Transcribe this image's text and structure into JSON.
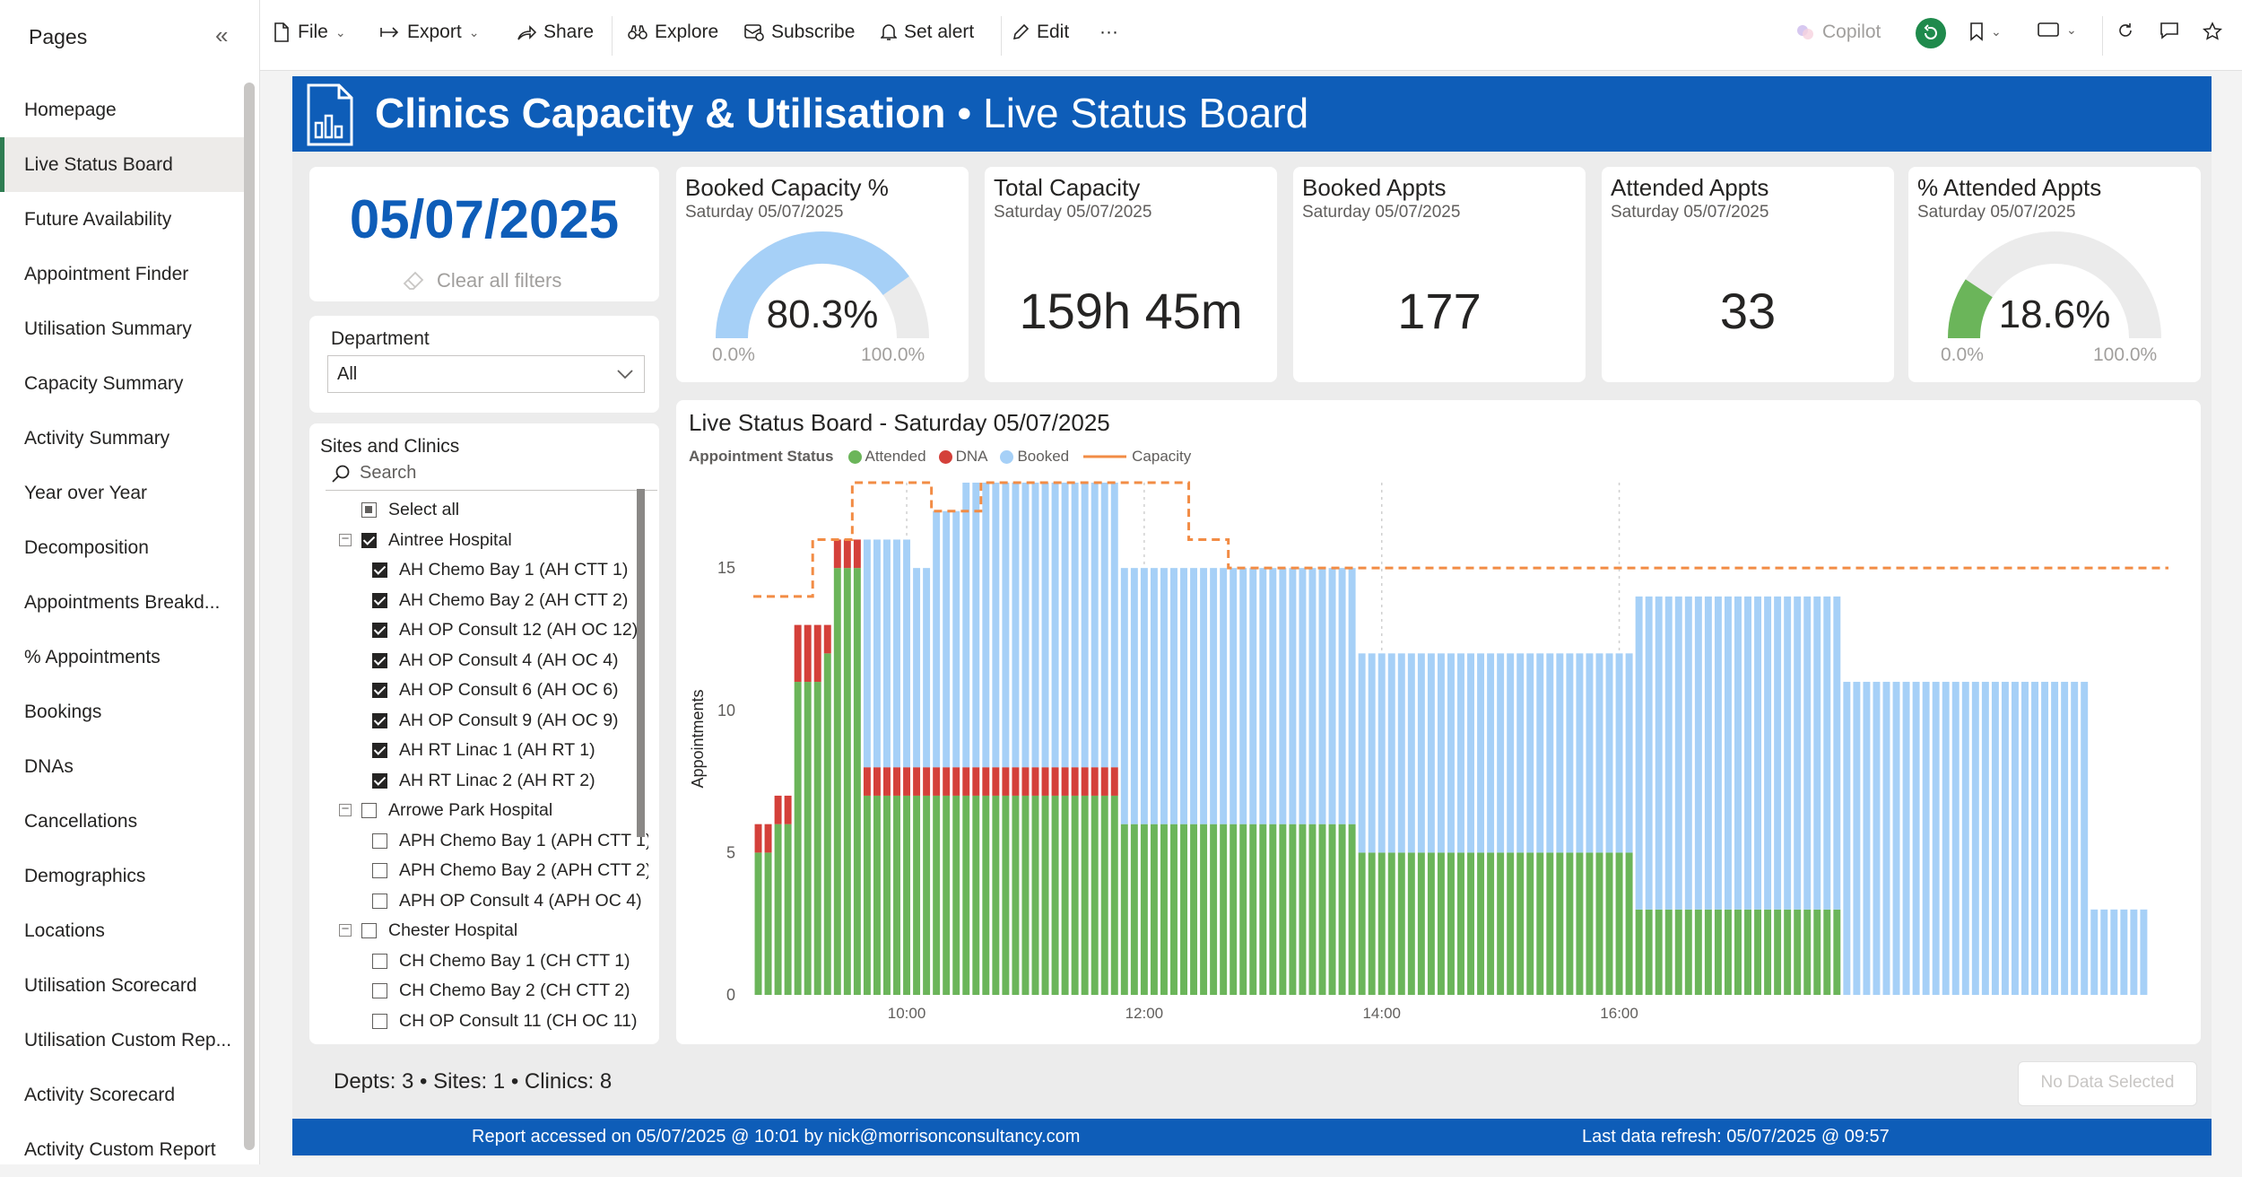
{
  "pages_pane": {
    "title": "Pages",
    "items": [
      {
        "label": "Homepage",
        "active": false
      },
      {
        "label": "Live Status Board",
        "active": true
      },
      {
        "label": "Future Availability",
        "active": false
      },
      {
        "label": "Appointment Finder",
        "active": false
      },
      {
        "label": "Utilisation Summary",
        "active": false
      },
      {
        "label": "Capacity Summary",
        "active": false
      },
      {
        "label": "Activity Summary",
        "active": false
      },
      {
        "label": "Year over Year",
        "active": false
      },
      {
        "label": "Decomposition",
        "active": false
      },
      {
        "label": "Appointments Breakd...",
        "active": false
      },
      {
        "label": "% Appointments",
        "active": false
      },
      {
        "label": "Bookings",
        "active": false
      },
      {
        "label": "DNAs",
        "active": false
      },
      {
        "label": "Cancellations",
        "active": false
      },
      {
        "label": "Demographics",
        "active": false
      },
      {
        "label": "Locations",
        "active": false
      },
      {
        "label": "Utilisation Scorecard",
        "active": false
      },
      {
        "label": "Utilisation Custom Rep...",
        "active": false
      },
      {
        "label": "Activity Scorecard",
        "active": false
      },
      {
        "label": "Activity Custom Report",
        "active": false
      }
    ]
  },
  "toolbar": {
    "file": "File",
    "export": "Export",
    "share": "Share",
    "explore": "Explore",
    "subscribe": "Subscribe",
    "set_alert": "Set alert",
    "edit": "Edit",
    "more": "···",
    "copilot": "Copilot"
  },
  "banner": {
    "title_bold": "Clinics Capacity & Utilisation",
    "title_rest": " • Live Status Board"
  },
  "date_card": {
    "date": "05/07/2025",
    "clear_filters": "Clear all filters"
  },
  "department_slicer": {
    "title": "Department",
    "selected": "All"
  },
  "sites_slicer": {
    "title": "Sites and Clinics",
    "search_placeholder": "Search",
    "rows": [
      {
        "label": "Select all",
        "level": 0,
        "state": "partial",
        "expander": false
      },
      {
        "label": "Aintree Hospital",
        "level": 0,
        "state": "checked",
        "expander": true
      },
      {
        "label": "AH Chemo Bay 1 (AH CTT 1)",
        "level": 1,
        "state": "checked"
      },
      {
        "label": "AH Chemo Bay 2 (AH CTT 2)",
        "level": 1,
        "state": "checked"
      },
      {
        "label": "AH OP Consult 12 (AH OC 12)",
        "level": 1,
        "state": "checked"
      },
      {
        "label": "AH OP Consult 4 (AH OC 4)",
        "level": 1,
        "state": "checked"
      },
      {
        "label": "AH OP Consult 6 (AH OC 6)",
        "level": 1,
        "state": "checked"
      },
      {
        "label": "AH OP Consult 9 (AH OC 9)",
        "level": 1,
        "state": "checked"
      },
      {
        "label": "AH RT Linac 1 (AH RT 1)",
        "level": 1,
        "state": "checked"
      },
      {
        "label": "AH RT Linac 2 (AH RT 2)",
        "level": 1,
        "state": "checked"
      },
      {
        "label": "Arrowe Park Hospital",
        "level": 0,
        "state": "unchecked",
        "expander": true
      },
      {
        "label": "APH Chemo Bay 1 (APH CTT 1)",
        "level": 1,
        "state": "unchecked"
      },
      {
        "label": "APH Chemo Bay 2 (APH CTT 2)",
        "level": 1,
        "state": "unchecked"
      },
      {
        "label": "APH OP Consult 4 (APH OC 4)",
        "level": 1,
        "state": "unchecked"
      },
      {
        "label": "Chester Hospital",
        "level": 0,
        "state": "unchecked",
        "expander": true
      },
      {
        "label": "CH Chemo Bay 1 (CH CTT 1)",
        "level": 1,
        "state": "unchecked"
      },
      {
        "label": "CH Chemo Bay 2 (CH CTT 2)",
        "level": 1,
        "state": "unchecked"
      },
      {
        "label": "CH OP Consult 11 (CH OC 11)",
        "level": 1,
        "state": "unchecked"
      }
    ]
  },
  "kpis": {
    "booked_capacity": {
      "title": "Booked Capacity %",
      "subtitle": "Saturday 05/07/2025",
      "value": "80.3%",
      "fraction": 0.803,
      "min": "0.0%",
      "max": "100.0%"
    },
    "total_capacity": {
      "title": "Total Capacity",
      "subtitle": "Saturday 05/07/2025",
      "value": "159h 45m"
    },
    "booked_appts": {
      "title": "Booked Appts",
      "subtitle": "Saturday 05/07/2025",
      "value": "177"
    },
    "attended_appts": {
      "title": "Attended Appts",
      "subtitle": "Saturday 05/07/2025",
      "value": "33"
    },
    "pct_attended": {
      "title": "% Attended Appts",
      "subtitle": "Saturday 05/07/2025",
      "value": "18.6%",
      "fraction": 0.186,
      "min": "0.0%",
      "max": "100.0%"
    }
  },
  "colors": {
    "brand_blue": "#0e5db8",
    "attended": "#6bb55a",
    "dna": "#d4403a",
    "booked": "#a6d0f7",
    "capacity": "#f28c45",
    "gauge_track": "#ebebeb",
    "date_text": "#0e5db8"
  },
  "chart_data": {
    "type": "bar",
    "title": "Live Status Board - Saturday 05/07/2025",
    "legend_title": "Appointment Status",
    "legend": [
      "Attended",
      "DNA",
      "Booked",
      "Capacity"
    ],
    "legend_placement": "top-left",
    "ylabel": "Appointments",
    "ylim": [
      0,
      18
    ],
    "y_ticks": [
      0,
      5,
      10,
      15
    ],
    "x_ticks": [
      "10:00",
      "12:00",
      "14:00",
      "16:00"
    ],
    "x_tick_index": [
      15,
      39,
      63,
      87
    ],
    "gridlines": "dotted vertical at x ticks",
    "series": [
      {
        "name": "Attended",
        "values": [
          5,
          5,
          6,
          6,
          11,
          11,
          11,
          12,
          15,
          15,
          15,
          7,
          7,
          7,
          7,
          7,
          7,
          7,
          7,
          7,
          7,
          7,
          7,
          7,
          7,
          7,
          7,
          7,
          7,
          7,
          7,
          7,
          7,
          7,
          7,
          7,
          7,
          6,
          6,
          6,
          6,
          6,
          6,
          6,
          6,
          6,
          6,
          6,
          6,
          6,
          6,
          6,
          6,
          6,
          6,
          6,
          6,
          6,
          6,
          6,
          6,
          5,
          5,
          5,
          5,
          5,
          5,
          5,
          5,
          5,
          5,
          5,
          5,
          5,
          5,
          5,
          5,
          5,
          5,
          5,
          5,
          5,
          5,
          5,
          5,
          5,
          5,
          5,
          5,
          3,
          3,
          3,
          3,
          3,
          3,
          3,
          3,
          3,
          3,
          3,
          3,
          3,
          3,
          3,
          3,
          3,
          3,
          3,
          3,
          3,
          0,
          0,
          0,
          0,
          0,
          0,
          0,
          0,
          0,
          0,
          0,
          0,
          0,
          0,
          0,
          0,
          0,
          0,
          0,
          0,
          0,
          0,
          0,
          0,
          0,
          0,
          0,
          0,
          0,
          0,
          0,
          0,
          0
        ]
      },
      {
        "name": "DNA",
        "values": [
          1,
          1,
          1,
          1,
          2,
          2,
          2,
          1,
          1,
          1,
          1,
          1,
          1,
          1,
          1,
          1,
          1,
          1,
          1,
          1,
          1,
          1,
          1,
          1,
          1,
          1,
          1,
          1,
          1,
          1,
          1,
          1,
          1,
          1,
          1,
          1,
          1,
          0,
          0,
          0,
          0,
          0,
          0,
          0,
          0,
          0,
          0,
          0,
          0,
          0,
          0,
          0,
          0,
          0,
          0,
          0,
          0,
          0,
          0,
          0,
          0,
          0,
          0,
          0,
          0,
          0,
          0,
          0,
          0,
          0,
          0,
          0,
          0,
          0,
          0,
          0,
          0,
          0,
          0,
          0,
          0,
          0,
          0,
          0,
          0,
          0,
          0,
          0,
          0,
          0,
          0,
          0,
          0,
          0,
          0,
          0,
          0,
          0,
          0,
          0,
          0,
          0,
          0,
          0,
          0,
          0,
          0,
          0,
          0,
          0,
          0,
          0,
          0,
          0,
          0,
          0,
          0,
          0,
          0,
          0,
          0,
          0,
          0,
          0,
          0,
          0,
          0,
          0,
          0,
          0,
          0,
          0,
          0,
          0,
          0,
          0,
          0,
          0,
          0,
          0,
          0,
          0,
          0
        ]
      },
      {
        "name": "Booked",
        "values": [
          0,
          0,
          0,
          0,
          0,
          0,
          0,
          0,
          0,
          0,
          0,
          8,
          8,
          8,
          8,
          8,
          7,
          7,
          9,
          9,
          9,
          10,
          10,
          10,
          10,
          10,
          10,
          10,
          10,
          10,
          10,
          10,
          10,
          10,
          10,
          10,
          10,
          9,
          9,
          9,
          9,
          9,
          9,
          9,
          9,
          9,
          9,
          9,
          9,
          9,
          9,
          9,
          9,
          9,
          9,
          9,
          9,
          9,
          9,
          9,
          9,
          7,
          7,
          7,
          7,
          7,
          7,
          7,
          7,
          7,
          7,
          7,
          7,
          7,
          7,
          7,
          7,
          7,
          7,
          7,
          7,
          7,
          7,
          7,
          7,
          7,
          7,
          7,
          7,
          11,
          11,
          11,
          11,
          11,
          11,
          11,
          11,
          11,
          11,
          11,
          11,
          11,
          11,
          11,
          11,
          11,
          11,
          11,
          11,
          11,
          11,
          11,
          11,
          11,
          11,
          11,
          11,
          11,
          11,
          11,
          11,
          11,
          11,
          11,
          11,
          11,
          11,
          11,
          11,
          11,
          11,
          11,
          11,
          11,
          11,
          3,
          3,
          3,
          3,
          3,
          3
        ]
      },
      {
        "name": "Capacity",
        "type": "line",
        "values": [
          14,
          14,
          14,
          14,
          14,
          14,
          16,
          16,
          16,
          16,
          18,
          18,
          18,
          18,
          18,
          18,
          18,
          18,
          17,
          17,
          17,
          17,
          17,
          18,
          18,
          18,
          18,
          18,
          18,
          18,
          18,
          18,
          18,
          18,
          18,
          18,
          18,
          18,
          18,
          18,
          18,
          18,
          18,
          18,
          16,
          16,
          16,
          16,
          15,
          15,
          15,
          15,
          15,
          15,
          15,
          15,
          15,
          15,
          15,
          15,
          15,
          15,
          15,
          15,
          15,
          15,
          15,
          15,
          15,
          15,
          15,
          15,
          15,
          15,
          15,
          15,
          15,
          15,
          15,
          15,
          15,
          15,
          15,
          15,
          15,
          15,
          15,
          15,
          15,
          15,
          15,
          15,
          15,
          15,
          15,
          15,
          15,
          15,
          15,
          15,
          15,
          15,
          15,
          15,
          15,
          15,
          15,
          15,
          15,
          15,
          15,
          15,
          15,
          15,
          15,
          15,
          15,
          15,
          15,
          15,
          15,
          15,
          15,
          15,
          15,
          15,
          15,
          15,
          15,
          15,
          15,
          15,
          15,
          15,
          15,
          15,
          15,
          15,
          15,
          15,
          15,
          15,
          15
        ]
      }
    ]
  },
  "footer": {
    "summary": "Depts: 3  •  Sites: 1  •  Clinics: 8",
    "no_data": "No Data Selected",
    "report_accessed": "Report accessed on 05/07/2025 @ 10:01 by nick@morrisonconsultancy.com",
    "last_refresh": "Last data refresh: 05/07/2025 @ 09:57"
  }
}
